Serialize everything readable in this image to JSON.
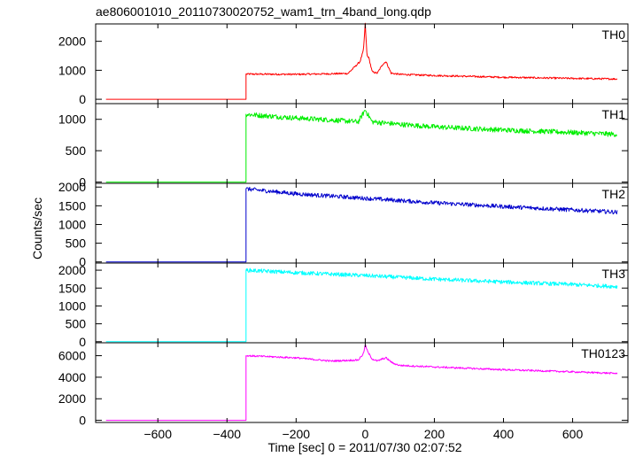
{
  "chart_data": {
    "type": "line",
    "title": "ae806001010_20110730020752_wam1_trn_4band_long.qdp",
    "xlabel": "Time [sec] 0 = 2011/07/30 02:07:52",
    "ylabel": "Counts/sec",
    "xlim": [
      -780,
      760
    ],
    "x_ticks": [
      -600,
      -400,
      -200,
      0,
      200,
      400,
      600
    ],
    "x_tick_labels": [
      "−600",
      "−400",
      "−200",
      "0",
      "200",
      "400",
      "600"
    ],
    "grid": false,
    "panels": [
      {
        "name": "TH0",
        "color": "#ff0000",
        "ylim": [
          -150,
          2600
        ],
        "yticks": [
          0,
          1000,
          2000
        ],
        "x": [
          -750,
          -345,
          -344,
          -200,
          -50,
          -15,
          -5,
          0,
          5,
          10,
          20,
          35,
          50,
          60,
          75,
          100,
          200,
          400,
          600,
          730
        ],
        "values": [
          0,
          0,
          870,
          860,
          890,
          1300,
          1700,
          2600,
          1500,
          1450,
          950,
          900,
          1200,
          1300,
          900,
          860,
          820,
          760,
          720,
          700
        ]
      },
      {
        "name": "TH1",
        "color": "#00ee00",
        "ylim": [
          -20,
          1250
        ],
        "yticks": [
          0,
          500,
          1000
        ],
        "x": [
          -750,
          -345,
          -344,
          -300,
          -200,
          -100,
          -20,
          0,
          20,
          100,
          200,
          400,
          600,
          730
        ],
        "values": [
          0,
          0,
          1080,
          1060,
          1020,
          990,
          960,
          1150,
          960,
          920,
          880,
          830,
          790,
          760
        ],
        "noise": 40
      },
      {
        "name": "TH2",
        "color": "#0000cc",
        "ylim": [
          -30,
          2100
        ],
        "yticks": [
          0,
          500,
          1000,
          1500,
          2000
        ],
        "x": [
          -750,
          -345,
          -344,
          -200,
          0,
          200,
          400,
          600,
          730
        ],
        "values": [
          0,
          0,
          1950,
          1820,
          1700,
          1580,
          1480,
          1390,
          1330
        ],
        "noise": 55
      },
      {
        "name": "TH3",
        "color": "#00ffff",
        "ylim": [
          -30,
          2200
        ],
        "yticks": [
          0,
          500,
          1000,
          1500,
          2000
        ],
        "x": [
          -750,
          -345,
          -344,
          -200,
          0,
          200,
          400,
          600,
          730
        ],
        "values": [
          0,
          0,
          2000,
          1930,
          1850,
          1750,
          1670,
          1600,
          1540
        ],
        "noise": 55
      },
      {
        "name": "TH0123",
        "color": "#ff00ff",
        "ylim": [
          -200,
          7200
        ],
        "yticks": [
          0,
          2000,
          4000,
          6000
        ],
        "x": [
          -750,
          -345,
          -344,
          -200,
          -100,
          -20,
          -5,
          0,
          8,
          20,
          35,
          50,
          60,
          80,
          100,
          200,
          400,
          600,
          730
        ],
        "values": [
          0,
          0,
          6000,
          5800,
          5500,
          5600,
          6200,
          7000,
          6300,
          5700,
          5500,
          5700,
          5800,
          5300,
          5100,
          4950,
          4700,
          4500,
          4350
        ],
        "noise": 80
      }
    ]
  }
}
